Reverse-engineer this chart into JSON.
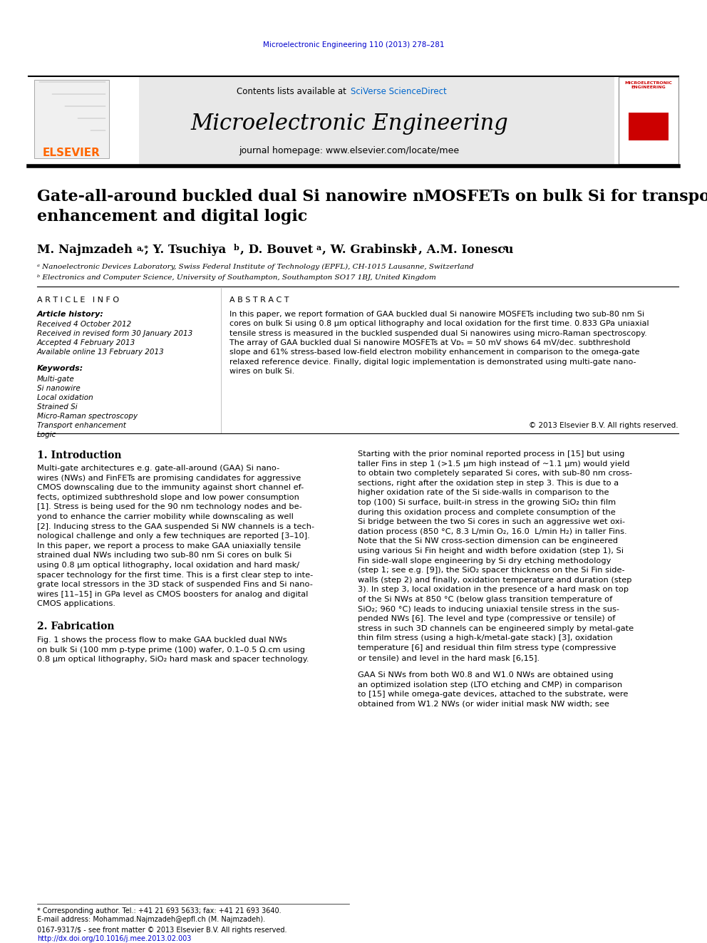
{
  "page_width": 9.92,
  "page_height": 13.23,
  "background_color": "#ffffff",
  "journal_ref": "Microelectronic Engineering 110 (2013) 278–281",
  "journal_ref_color": "#0000cc",
  "header_bg": "#e8e8e8",
  "contents_text": "Contents lists available at ",
  "sciverse_text": "SciVerse ScienceDirect",
  "sciverse_color": "#0066cc",
  "journal_title": "Microelectronic Engineering",
  "journal_homepage": "journal homepage: www.elsevier.com/locate/mee",
  "elsevier_color": "#FF6600",
  "paper_title": "Gate-all-around buckled dual Si nanowire nMOSFETs on bulk Si for transport\nenhancement and digital logic",
  "affil_a": "ᵃ Nanoelectronic Devices Laboratory, Swiss Federal Institute of Technology (EPFL), CH-1015 Lausanne, Switzerland",
  "affil_b": "ᵇ Electronics and Computer Science, University of Southampton, Southampton SO17 1BJ, United Kingdom",
  "article_info_title": "A R T I C L E   I N F O",
  "article_history_title": "Article history:",
  "received_1": "Received 4 October 2012",
  "received_2": "Received in revised form 30 January 2013",
  "accepted": "Accepted 4 February 2013",
  "available": "Available online 13 February 2013",
  "keywords_title": "Keywords:",
  "keywords": [
    "Multi-gate",
    "Si nanowire",
    "Local oxidation",
    "Strained Si",
    "Micro-Raman spectroscopy",
    "Transport enhancement",
    "Logic"
  ],
  "abstract_title": "A B S T R A C T",
  "abstract_text": "In this paper, we report formation of GAA buckled dual Si nanowire MOSFETs including two sub-80 nm Si\ncores on bulk Si using 0.8 μm optical lithography and local oxidation for the first time. 0.833 GPa uniaxial\ntensile stress is measured in the buckled suspended dual Si nanowires using micro-Raman spectroscopy.\nThe array of GAA buckled dual Si nanowire MOSFETs at Vᴅₛ = 50 mV shows 64 mV/dec. subthreshold\nslope and 61% stress-based low-field electron mobility enhancement in comparison to the omega-gate\nrelaxed reference device. Finally, digital logic implementation is demonstrated using multi-gate nano-\nwires on bulk Si.",
  "copyright": "© 2013 Elsevier B.V. All rights reserved.",
  "section1_title": "1. Introduction",
  "section1_text": "Multi-gate architectures e.g. gate-all-around (GAA) Si nano-\nwires (NWs) and FinFETs are promising candidates for aggressive\nCMOS downscaling due to the immunity against short channel ef-\nfects, optimized subthreshold slope and low power consumption\n[1]. Stress is being used for the 90 nm technology nodes and be-\nyond to enhance the carrier mobility while downscaling as well\n[2]. Inducing stress to the GAA suspended Si NW channels is a tech-\nnological challenge and only a few techniques are reported [3–10].\nIn this paper, we report a process to make GAA uniaxially tensile\nstrained dual NWs including two sub-80 nm Si cores on bulk Si\nusing 0.8 μm optical lithography, local oxidation and hard mask/\nspacer technology for the first time. This is a first clear step to inte-\ngrate local stressors in the 3D stack of suspended Fins and Si nano-\nwires [11–15] in GPa level as CMOS boosters for analog and digital\nCMOS applications.",
  "section2_title": "2. Fabrication",
  "section2_text": "Fig. 1 shows the process flow to make GAA buckled dual NWs\non bulk Si (100 mm p-type prime (100) wafer, 0.1–0.5 Ω.cm using\n0.8 μm optical lithography, SiO₂ hard mask and spacer technology.",
  "right_col_text": "Starting with the prior nominal reported process in [15] but using\ntaller Fins in step 1 (>1.5 μm high instead of ∼1.1 μm) would yield\nto obtain two completely separated Si cores, with sub-80 nm cross-\nsections, right after the oxidation step in step 3. This is due to a\nhigher oxidation rate of the Si side-walls in comparison to the\ntop (100) Si surface, built-in stress in the growing SiO₂ thin film\nduring this oxidation process and complete consumption of the\nSi bridge between the two Si cores in such an aggressive wet oxi-\ndation process (850 °C, 8.3 L/min O₂, 16.0  L/min H₂) in taller Fins.\nNote that the Si NW cross-section dimension can be engineered\nusing various Si Fin height and width before oxidation (step 1), Si\nFin side-wall slope engineering by Si dry etching methodology\n(step 1; see e.g. [9]), the SiO₂ spacer thickness on the Si Fin side-\nwalls (step 2) and finally, oxidation temperature and duration (step\n3). In step 3, local oxidation in the presence of a hard mask on top\nof the Si NWs at 850 °C (below glass transition temperature of\nSiO₂; 960 °C) leads to inducing uniaxial tensile stress in the sus-\npended NWs [6]. The level and type (compressive or tensile) of\nstress in such 3D channels can be engineered simply by metal-gate\nthin film stress (using a high-k/metal-gate stack) [3], oxidation\ntemperature [6] and residual thin film stress type (compressive\nor tensile) and level in the hard mask [6,15].",
  "right_col_text2": "GAA Si NWs from both W0.8 and W1.0 NWs are obtained using\nan optimized isolation step (LTO etching and CMP) in comparison\nto [15] while omega-gate devices, attached to the substrate, were\nobtained from W1.2 NWs (or wider initial mask NW width; see",
  "footnote_star": "* Corresponding author. Tel.: +41 21 693 5633; fax: +41 21 693 3640.",
  "footnote_email": "E-mail address: Mohammad.Najmzadeh@epfl.ch (M. Najmzadeh).",
  "footer_issn": "0167-9317/$ - see front matter © 2013 Elsevier B.V. All rights reserved.",
  "footer_doi": "http://dx.doi.org/10.1016/j.mee.2013.02.003"
}
